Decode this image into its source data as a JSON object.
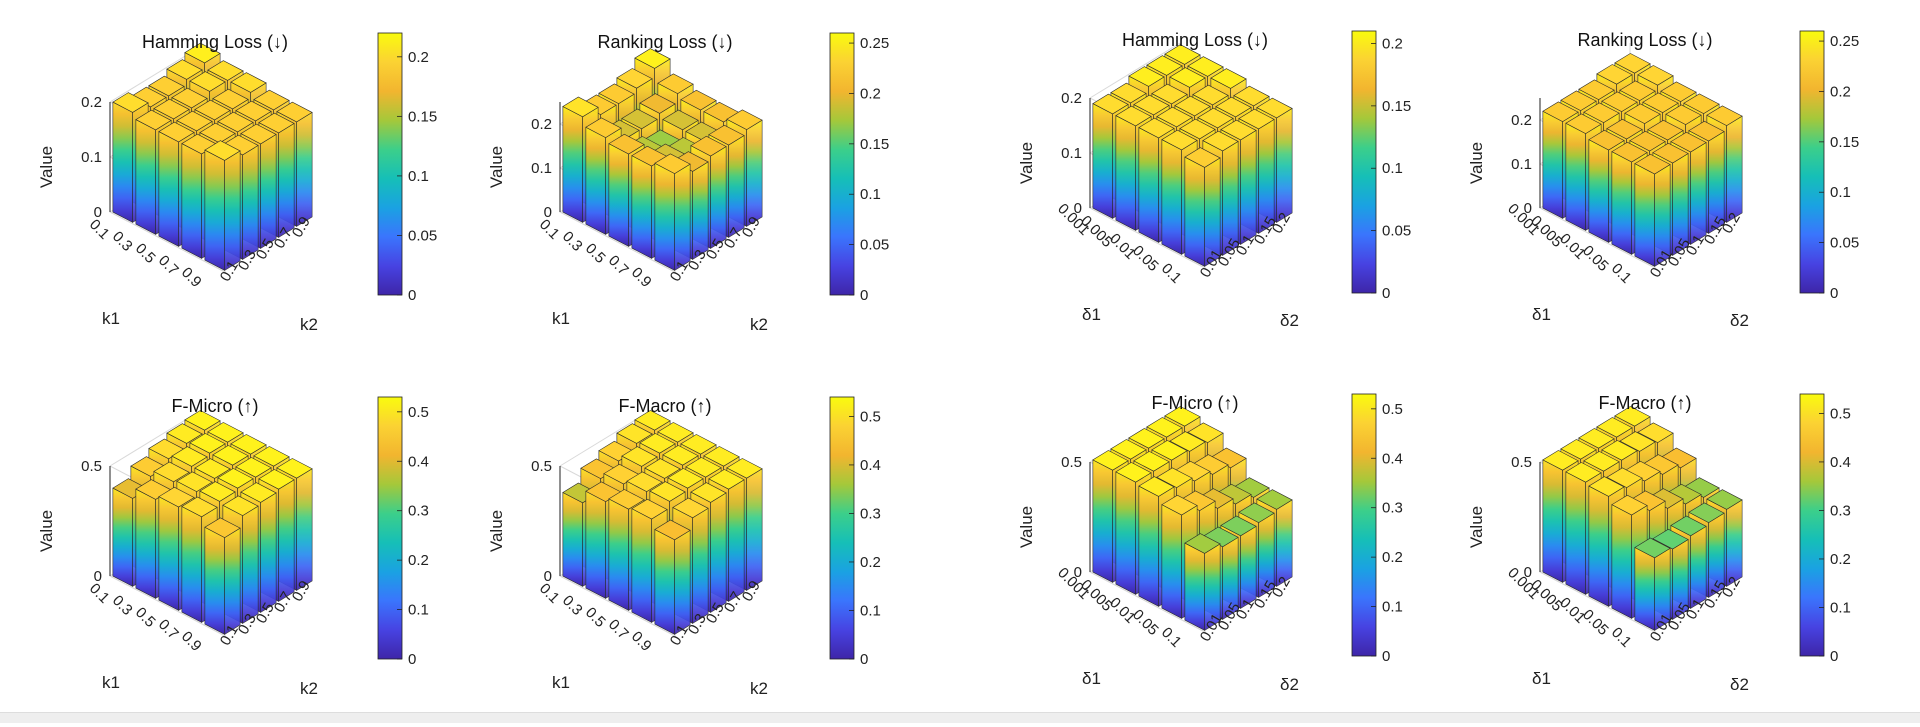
{
  "colorbar_stops": [
    "#3e26a8",
    "#4743e2",
    "#3a75fd",
    "#1aa2e2",
    "#16bfb7",
    "#3ccf8a",
    "#a5c83a",
    "#f2b52f",
    "#fbd233",
    "#f9fb0e"
  ],
  "colors": {
    "edge": "#2b2b2b",
    "axis": "#222222",
    "grid": "#d9d9d9",
    "background": "#ffffff"
  },
  "chart_data": [
    {
      "type": "bar3d",
      "title": "Hamming Loss (↓)",
      "zlabel": "Value",
      "xlabel": "k1",
      "ylabel": "k2",
      "x": [
        "0.1",
        "0.3",
        "0.5",
        "0.7",
        "0.9"
      ],
      "y": [
        "0.1",
        "0.3",
        "0.5",
        "0.7",
        "0.9"
      ],
      "zticks": [
        "0",
        "0.1",
        "0.2"
      ],
      "zlim": [
        0,
        0.2
      ],
      "colorbar": {
        "ticks": [
          "0",
          "0.05",
          "0.1",
          "0.15",
          "0.2"
        ],
        "limits": [
          0,
          0.22
        ]
      },
      "values": [
        [
          0.2,
          0.19,
          0.19,
          0.2,
          0.21
        ],
        [
          0.19,
          0.19,
          0.19,
          0.2,
          0.2
        ],
        [
          0.19,
          0.19,
          0.19,
          0.19,
          0.2
        ],
        [
          0.19,
          0.19,
          0.19,
          0.19,
          0.19
        ],
        [
          0.2,
          0.19,
          0.19,
          0.19,
          0.19
        ]
      ]
    },
    {
      "type": "bar3d",
      "title": "Ranking Loss (↓)",
      "zlabel": "Value",
      "xlabel": "k1",
      "ylabel": "k2",
      "x": [
        "0.1",
        "0.3",
        "0.5",
        "0.7",
        "0.9"
      ],
      "y": [
        "0.1",
        "0.3",
        "0.5",
        "0.7",
        "0.9"
      ],
      "zticks": [
        "0",
        "0.1",
        "0.2"
      ],
      "zlim": [
        0,
        0.25
      ],
      "colorbar": {
        "ticks": [
          "0",
          "0.05",
          "0.1",
          "0.15",
          "0.2",
          "0.25"
        ],
        "limits": [
          0,
          0.26
        ]
      },
      "values": [
        [
          0.24,
          0.22,
          0.22,
          0.23,
          0.25
        ],
        [
          0.22,
          0.19,
          0.19,
          0.2,
          0.22
        ],
        [
          0.21,
          0.18,
          0.17,
          0.19,
          0.21
        ],
        [
          0.21,
          0.19,
          0.18,
          0.19,
          0.21
        ],
        [
          0.22,
          0.2,
          0.21,
          0.21,
          0.22
        ]
      ]
    },
    {
      "type": "bar3d",
      "title": "Hamming Loss (↓)",
      "zlabel": "Value",
      "xlabel": "δ1",
      "ylabel": "δ2",
      "x": [
        "0.001",
        "0.005",
        "0.01",
        "0.05",
        "0.1"
      ],
      "y": [
        "0.01",
        "0.05",
        "0.1",
        "0.15",
        "0.2"
      ],
      "zticks": [
        "0",
        "0.1",
        "0.2"
      ],
      "zlim": [
        0,
        0.2
      ],
      "colorbar": {
        "ticks": [
          "0",
          "0.05",
          "0.1",
          "0.15",
          "0.2"
        ],
        "limits": [
          0,
          0.21
        ]
      },
      "values": [
        [
          0.19,
          0.19,
          0.2,
          0.2,
          0.2
        ],
        [
          0.19,
          0.19,
          0.19,
          0.2,
          0.2
        ],
        [
          0.19,
          0.19,
          0.19,
          0.19,
          0.2
        ],
        [
          0.19,
          0.19,
          0.19,
          0.19,
          0.19
        ],
        [
          0.18,
          0.19,
          0.19,
          0.19,
          0.19
        ]
      ]
    },
    {
      "type": "bar3d",
      "title": "Ranking Loss (↓)",
      "zlabel": "Value",
      "xlabel": "δ1",
      "ylabel": "δ2",
      "x": [
        "0.001",
        "0.005",
        "0.01",
        "0.05",
        "0.1"
      ],
      "y": [
        "0.01",
        "0.05",
        "0.1",
        "0.15",
        "0.2"
      ],
      "zticks": [
        "0",
        "0.1",
        "0.2"
      ],
      "zlim": [
        0,
        0.25
      ],
      "colorbar": {
        "ticks": [
          "0",
          "0.05",
          "0.1",
          "0.15",
          "0.2",
          "0.25"
        ],
        "limits": [
          0,
          0.26
        ]
      },
      "values": [
        [
          0.22,
          0.22,
          0.22,
          0.23,
          0.23
        ],
        [
          0.22,
          0.22,
          0.22,
          0.22,
          0.23
        ],
        [
          0.21,
          0.21,
          0.22,
          0.22,
          0.22
        ],
        [
          0.21,
          0.21,
          0.21,
          0.22,
          0.22
        ],
        [
          0.21,
          0.21,
          0.21,
          0.21,
          0.22
        ]
      ]
    },
    {
      "type": "bar3d",
      "title": "F-Micro (↑)",
      "zlabel": "Value",
      "xlabel": "k1",
      "ylabel": "k2",
      "x": [
        "0.1",
        "0.3",
        "0.5",
        "0.7",
        "0.9"
      ],
      "y": [
        "0.1",
        "0.3",
        "0.5",
        "0.7",
        "0.9"
      ],
      "zticks": [
        "0",
        "0.5"
      ],
      "zlim": [
        0,
        0.5
      ],
      "colorbar": {
        "ticks": [
          "0",
          "0.1",
          "0.2",
          "0.3",
          "0.4",
          "0.5"
        ],
        "limits": [
          0,
          0.53
        ]
      },
      "values": [
        [
          0.4,
          0.45,
          0.48,
          0.5,
          0.51
        ],
        [
          0.45,
          0.48,
          0.5,
          0.51,
          0.51
        ],
        [
          0.47,
          0.49,
          0.5,
          0.51,
          0.51
        ],
        [
          0.48,
          0.5,
          0.51,
          0.51,
          0.51
        ],
        [
          0.44,
          0.49,
          0.5,
          0.51,
          0.51
        ]
      ]
    },
    {
      "type": "bar3d",
      "title": "F-Macro (↑)",
      "zlabel": "Value",
      "xlabel": "k1",
      "ylabel": "k2",
      "x": [
        "0.1",
        "0.3",
        "0.5",
        "0.7",
        "0.9"
      ],
      "y": [
        "0.1",
        "0.3",
        "0.5",
        "0.7",
        "0.9"
      ],
      "zticks": [
        "0",
        "0.5"
      ],
      "zlim": [
        0,
        0.5
      ],
      "colorbar": {
        "ticks": [
          "0",
          "0.1",
          "0.2",
          "0.3",
          "0.4",
          "0.5"
        ],
        "limits": [
          0,
          0.54
        ]
      },
      "values": [
        [
          0.38,
          0.44,
          0.47,
          0.5,
          0.51
        ],
        [
          0.44,
          0.47,
          0.5,
          0.51,
          0.51
        ],
        [
          0.46,
          0.49,
          0.5,
          0.51,
          0.51
        ],
        [
          0.47,
          0.5,
          0.51,
          0.51,
          0.51
        ],
        [
          0.43,
          0.48,
          0.5,
          0.51,
          0.51
        ]
      ]
    },
    {
      "type": "bar3d",
      "title": "F-Micro (↑)",
      "zlabel": "Value",
      "xlabel": "δ1",
      "ylabel": "δ2",
      "x": [
        "0.001",
        "0.005",
        "0.01",
        "0.05",
        "0.1"
      ],
      "y": [
        "0.01",
        "0.05",
        "0.1",
        "0.15",
        "0.2"
      ],
      "zticks": [
        "0",
        "0.5"
      ],
      "zlim": [
        0,
        0.5
      ],
      "colorbar": {
        "ticks": [
          "0",
          "0.1",
          "0.2",
          "0.3",
          "0.4",
          "0.5"
        ],
        "limits": [
          0,
          0.53
        ]
      },
      "values": [
        [
          0.51,
          0.51,
          0.51,
          0.51,
          0.51
        ],
        [
          0.51,
          0.51,
          0.51,
          0.5,
          0.49
        ],
        [
          0.5,
          0.49,
          0.47,
          0.45,
          0.43
        ],
        [
          0.47,
          0.44,
          0.4,
          0.37,
          0.35
        ],
        [
          0.35,
          0.33,
          0.33,
          0.34,
          0.35
        ]
      ]
    },
    {
      "type": "bar3d",
      "title": "F-Macro (↑)",
      "zlabel": "Value",
      "xlabel": "δ1",
      "ylabel": "δ2",
      "x": [
        "0.001",
        "0.005",
        "0.01",
        "0.05",
        "0.1"
      ],
      "y": [
        "0.01",
        "0.05",
        "0.1",
        "0.15",
        "0.2"
      ],
      "zticks": [
        "0",
        "0.5"
      ],
      "zlim": [
        0,
        0.5
      ],
      "colorbar": {
        "ticks": [
          "0",
          "0.1",
          "0.2",
          "0.3",
          "0.4",
          "0.5"
        ],
        "limits": [
          0,
          0.54
        ]
      },
      "values": [
        [
          0.51,
          0.51,
          0.51,
          0.51,
          0.51
        ],
        [
          0.51,
          0.51,
          0.51,
          0.5,
          0.49
        ],
        [
          0.5,
          0.49,
          0.47,
          0.45,
          0.43
        ],
        [
          0.47,
          0.44,
          0.4,
          0.37,
          0.35
        ],
        [
          0.33,
          0.32,
          0.33,
          0.34,
          0.35
        ]
      ]
    }
  ]
}
